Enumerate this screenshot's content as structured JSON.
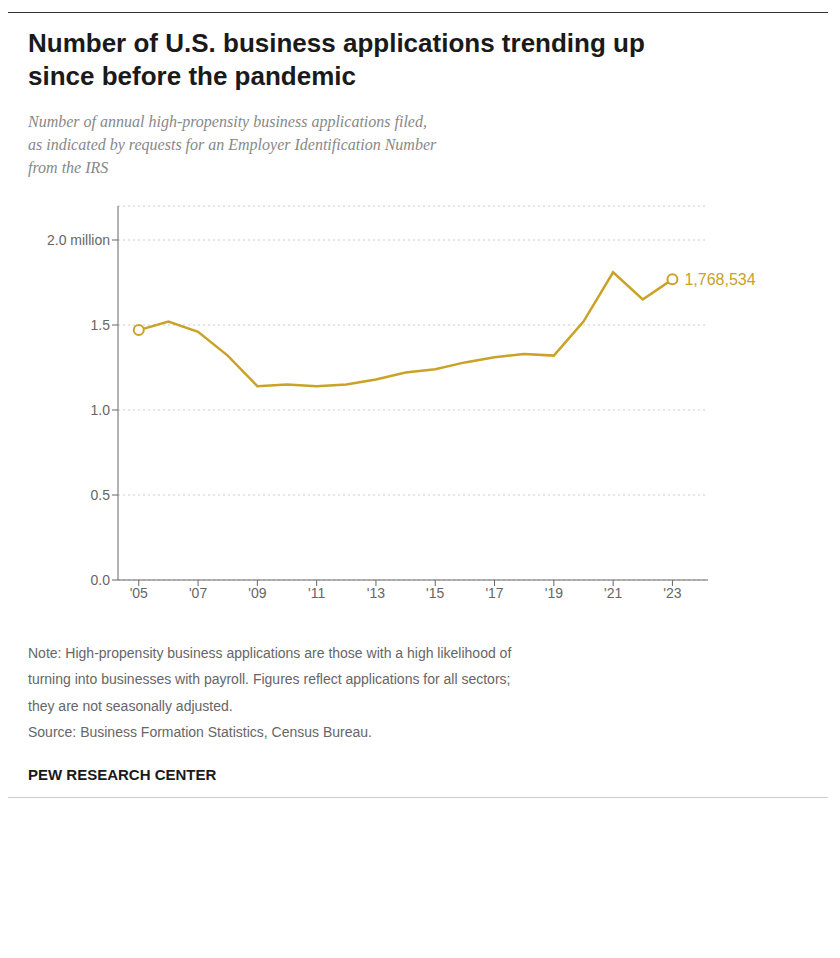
{
  "chart_data": {
    "type": "line",
    "title": "Number of U.S. business applications trending up\nsince before the pandemic",
    "subtitle": "Number of annual high-propensity business applications filed,\nas indicated by requests for an Employer Identification Number\nfrom the IRS",
    "notes": [
      "Note: High-propensity business applications are those with a high likelihood of",
      "turning into businesses with payroll. Figures reflect applications for all sectors;",
      "they are not seasonally adjusted.",
      "Source: Business Formation Statistics, Census Bureau."
    ],
    "footer": "PEW RESEARCH CENTER",
    "x": [
      2005,
      2006,
      2007,
      2008,
      2009,
      2010,
      2011,
      2012,
      2013,
      2014,
      2015,
      2016,
      2017,
      2018,
      2019,
      2020,
      2021,
      2022,
      2023
    ],
    "values": [
      1.47,
      1.52,
      1.46,
      1.32,
      1.14,
      1.15,
      1.14,
      1.15,
      1.18,
      1.22,
      1.24,
      1.28,
      1.31,
      1.33,
      1.32,
      1.52,
      1.81,
      1.65,
      1.768534
    ],
    "color": "#C9A227",
    "annotations": [
      {
        "x": 2023,
        "y": 1.768534,
        "text": "1,768,534"
      }
    ],
    "xlim": [
      2004.3,
      2024.2
    ],
    "xticks": [
      {
        "value": 2005,
        "label": "'05"
      },
      {
        "value": 2007,
        "label": "'07"
      },
      {
        "value": 2009,
        "label": "'09"
      },
      {
        "value": 2011,
        "label": "'11"
      },
      {
        "value": 2013,
        "label": "'13"
      },
      {
        "value": 2015,
        "label": "'15"
      },
      {
        "value": 2017,
        "label": "'17"
      },
      {
        "value": 2019,
        "label": "'19"
      },
      {
        "value": 2021,
        "label": "'21"
      },
      {
        "value": 2023,
        "label": "'23"
      }
    ],
    "ylim": [
      0.0,
      2.2
    ],
    "yticks": [
      {
        "value": 0.0,
        "label": "0.0"
      },
      0.5,
      {
        "value": 1.0,
        "label": "1.0"
      },
      1.5,
      {
        "value": 2.0,
        "label": "2.0 million"
      }
    ],
    "grid": true
  }
}
